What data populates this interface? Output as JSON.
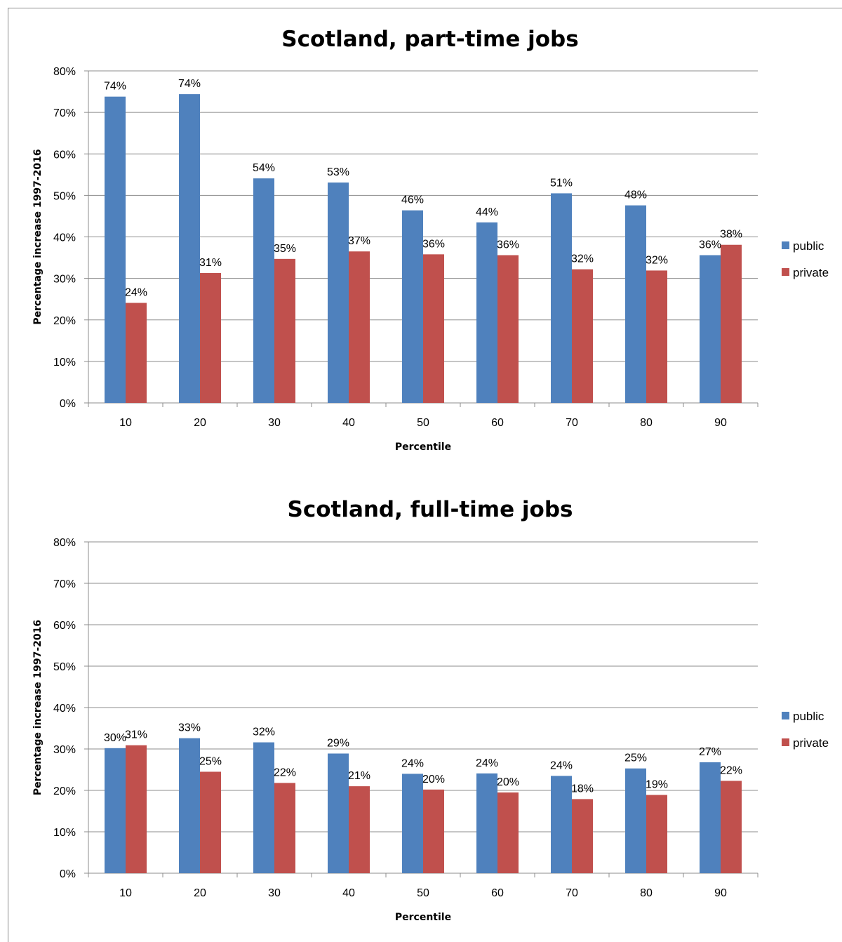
{
  "chart_data": [
    {
      "type": "bar",
      "title": "Scotland, part-time jobs",
      "xlabel": "Percentile",
      "ylabel": "Percentage increase 1997-2016",
      "categories": [
        "10",
        "20",
        "30",
        "40",
        "50",
        "60",
        "70",
        "80",
        "90"
      ],
      "ylim": [
        0,
        80
      ],
      "yticks": [
        "0%",
        "10%",
        "20%",
        "30%",
        "40%",
        "50%",
        "60%",
        "70%",
        "80%"
      ],
      "grid": true,
      "legend_position": "right",
      "series": [
        {
          "name": "public",
          "color": "#4f81bd",
          "values": [
            73.8,
            74.4,
            54.1,
            53.1,
            46.4,
            43.5,
            50.5,
            47.6,
            35.6
          ],
          "labels": [
            "74%",
            "74%",
            "54%",
            "53%",
            "46%",
            "44%",
            "51%",
            "48%",
            "36%"
          ]
        },
        {
          "name": "private",
          "color": "#c0504d",
          "values": [
            24.1,
            31.3,
            34.7,
            36.5,
            35.8,
            35.6,
            32.2,
            31.9,
            38.1
          ],
          "labels": [
            "24%",
            "31%",
            "35%",
            "37%",
            "36%",
            "36%",
            "32%",
            "32%",
            "38%"
          ]
        }
      ]
    },
    {
      "type": "bar",
      "title": "Scotland, full-time jobs",
      "xlabel": "Percentile",
      "ylabel": "Percentage increase 1997-2016",
      "categories": [
        "10",
        "20",
        "30",
        "40",
        "50",
        "60",
        "70",
        "80",
        "90"
      ],
      "ylim": [
        0,
        80
      ],
      "yticks": [
        "0%",
        "10%",
        "20%",
        "30%",
        "40%",
        "50%",
        "60%",
        "70%",
        "80%"
      ],
      "grid": true,
      "legend_position": "right",
      "series": [
        {
          "name": "public",
          "color": "#4f81bd",
          "values": [
            30.2,
            32.6,
            31.6,
            28.9,
            24.0,
            24.1,
            23.5,
            25.3,
            26.8
          ],
          "labels": [
            "30%",
            "33%",
            "32%",
            "29%",
            "24%",
            "24%",
            "24%",
            "25%",
            "27%"
          ]
        },
        {
          "name": "private",
          "color": "#c0504d",
          "values": [
            30.9,
            24.5,
            21.8,
            21.0,
            20.2,
            19.5,
            17.9,
            18.9,
            22.3
          ],
          "labels": [
            "31%",
            "25%",
            "22%",
            "21%",
            "20%",
            "20%",
            "18%",
            "19%",
            "22%"
          ]
        }
      ]
    }
  ]
}
